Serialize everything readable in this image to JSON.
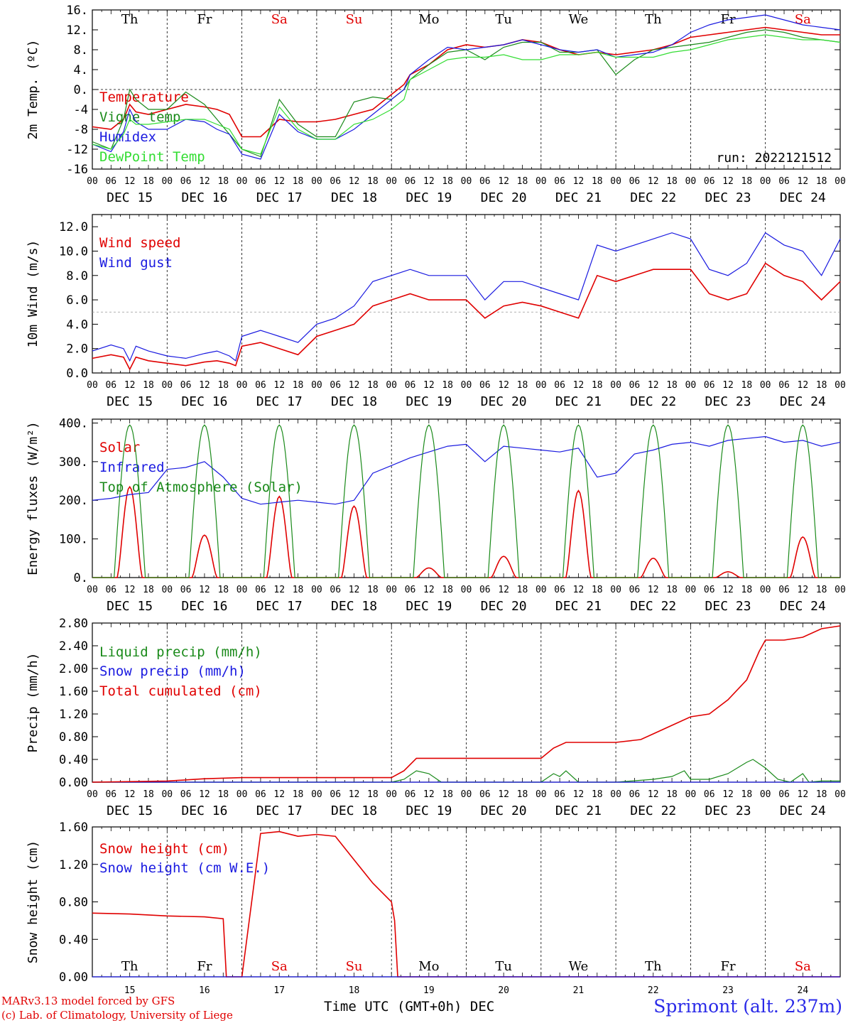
{
  "days": [
    {
      "label": "Th",
      "weekend": false,
      "date": "DEC 15",
      "num": "15"
    },
    {
      "label": "Fr",
      "weekend": false,
      "date": "DEC 16",
      "num": "16"
    },
    {
      "label": "Sa",
      "weekend": true,
      "date": "DEC 17",
      "num": "17"
    },
    {
      "label": "Su",
      "weekend": true,
      "date": "DEC 18",
      "num": "18"
    },
    {
      "label": "Mo",
      "weekend": false,
      "date": "DEC 19",
      "num": "19"
    },
    {
      "label": "Tu",
      "weekend": false,
      "date": "DEC 20",
      "num": "20"
    },
    {
      "label": "We",
      "weekend": false,
      "date": "DEC 21",
      "num": "21"
    },
    {
      "label": "Th",
      "weekend": false,
      "date": "DEC 22",
      "num": "22"
    },
    {
      "label": "Fr",
      "weekend": false,
      "date": "DEC 23",
      "num": "23"
    },
    {
      "label": "Sa",
      "weekend": true,
      "date": "DEC 24",
      "num": "24"
    }
  ],
  "hour_ticks": [
    "00",
    "06",
    "12",
    "18"
  ],
  "colors": {
    "red": "#e00000",
    "green": "#1a8a1a",
    "blue": "#1a1ae0",
    "lightgreen": "#33dd33",
    "weekend": "#e00000"
  },
  "footer": {
    "model": "MARv3.13 model forced by GFS",
    "credit": "(c) Lab. of Climatology, University of Liege",
    "xaxis": "Time UTC (GMT+0h) DEC",
    "location": "Sprimont (alt. 237m)"
  },
  "chart_data": [
    {
      "id": "temperature",
      "type": "line",
      "ylabel": "2m Temp. (ºC)",
      "ylim": [
        -16,
        16
      ],
      "yticks": [
        "16.",
        "12.",
        "8.",
        "4.",
        "0.",
        "-4",
        "-8",
        "-12",
        "-16"
      ],
      "annotation": "run: 2022121512",
      "hline": 0,
      "x_unit": "hours since DEC 15 00 UTC",
      "xlim": [
        0,
        240
      ],
      "series": [
        {
          "name": "Temperature",
          "color": "red",
          "x": [
            0,
            6,
            10,
            12,
            14,
            18,
            24,
            30,
            36,
            40,
            44,
            48,
            54,
            60,
            66,
            72,
            78,
            84,
            90,
            96,
            100,
            102,
            108,
            114,
            120,
            126,
            132,
            138,
            144,
            150,
            156,
            162,
            168,
            174,
            180,
            186,
            192,
            198,
            204,
            210,
            216,
            222,
            228,
            234,
            240
          ],
          "y": [
            -7.5,
            -8,
            -6,
            -3,
            -4.5,
            -5,
            -4,
            -3,
            -3.5,
            -4,
            -5,
            -9.5,
            -9.5,
            -6,
            -6.5,
            -6.5,
            -6,
            -5,
            -4,
            -1,
            1,
            3,
            5,
            8,
            9,
            8.5,
            9,
            10,
            9.5,
            8,
            7,
            7.5,
            7,
            7.5,
            8,
            9,
            10.5,
            11,
            11.5,
            12,
            12.5,
            12,
            11.5,
            11,
            11
          ]
        },
        {
          "name": "Vigne temp",
          "color": "green",
          "x": [
            0,
            6,
            10,
            12,
            14,
            18,
            24,
            30,
            36,
            40,
            44,
            48,
            54,
            60,
            66,
            72,
            78,
            84,
            90,
            96,
            100,
            102,
            108,
            114,
            120,
            126,
            132,
            138,
            144,
            150,
            156,
            162,
            168,
            174,
            180,
            186,
            192,
            198,
            204,
            210,
            216,
            222,
            228,
            234,
            240
          ],
          "y": [
            -10.5,
            -12,
            -6,
            0,
            -2,
            -4,
            -4,
            -0.5,
            -3,
            -6,
            -9,
            -12,
            -13.5,
            -2,
            -7,
            -9.5,
            -9.5,
            -2.5,
            -1.5,
            -2,
            0,
            2,
            5,
            7.5,
            8,
            6,
            8.5,
            9.5,
            9.5,
            7.5,
            7.5,
            8,
            3,
            6,
            8,
            8.5,
            9,
            9.5,
            10.5,
            11.5,
            12,
            11.5,
            10.5,
            10,
            9.5
          ]
        },
        {
          "name": "Humidex",
          "color": "blue",
          "x": [
            0,
            6,
            10,
            12,
            14,
            18,
            24,
            30,
            36,
            40,
            44,
            48,
            54,
            60,
            66,
            72,
            78,
            84,
            90,
            96,
            100,
            102,
            108,
            114,
            120,
            126,
            132,
            138,
            144,
            150,
            156,
            162,
            168,
            174,
            180,
            186,
            192,
            198,
            204,
            210,
            216,
            222,
            228,
            234,
            240
          ],
          "y": [
            -11,
            -12.5,
            -8.5,
            -4,
            -6.5,
            -8,
            -8,
            -6,
            -6.5,
            -8,
            -9,
            -13,
            -14,
            -5,
            -8.5,
            -10,
            -10,
            -8,
            -5,
            -2,
            0,
            3,
            6,
            8.5,
            8,
            8.5,
            9,
            10,
            9,
            8,
            7.5,
            8,
            6.5,
            7,
            7.5,
            9,
            11.5,
            13,
            14,
            14.5,
            15,
            14,
            13,
            12.5,
            12
          ]
        },
        {
          "name": "DewPoint Temp",
          "color": "lightgreen",
          "x": [
            0,
            6,
            10,
            12,
            14,
            18,
            24,
            30,
            36,
            40,
            44,
            48,
            54,
            60,
            66,
            72,
            78,
            84,
            90,
            96,
            100,
            102,
            108,
            114,
            120,
            126,
            132,
            138,
            144,
            150,
            156,
            162,
            168,
            174,
            180,
            186,
            192,
            198,
            204,
            210,
            216,
            222,
            228,
            234,
            240
          ],
          "y": [
            -11,
            -12,
            -9,
            -6,
            -7,
            -7,
            -6.5,
            -6,
            -6,
            -7,
            -8,
            -12,
            -13,
            -3.5,
            -8,
            -10,
            -10,
            -7,
            -6,
            -4,
            -2,
            2,
            4,
            6,
            6.5,
            6.5,
            7,
            6,
            6,
            7,
            7,
            7.5,
            6.5,
            6.5,
            6.5,
            7.5,
            8,
            9,
            10,
            10.5,
            11,
            10.5,
            10,
            10,
            9.5
          ]
        }
      ]
    },
    {
      "id": "wind",
      "type": "line",
      "ylabel": "10m Wind (m/s)",
      "ylim": [
        0,
        13
      ],
      "yticks": [
        "12.0",
        "10.0",
        "8.0",
        "6.0",
        "4.0",
        "2.0",
        "0.0"
      ],
      "hline": 5,
      "x_unit": "hours since DEC 15 00 UTC",
      "xlim": [
        0,
        240
      ],
      "series": [
        {
          "name": "Wind speed",
          "color": "red",
          "x": [
            0,
            6,
            10,
            12,
            14,
            18,
            24,
            30,
            36,
            40,
            44,
            46,
            48,
            54,
            60,
            66,
            72,
            78,
            84,
            90,
            96,
            102,
            108,
            114,
            120,
            126,
            132,
            138,
            144,
            150,
            156,
            162,
            168,
            174,
            180,
            186,
            192,
            198,
            204,
            210,
            216,
            222,
            228,
            234,
            240
          ],
          "y": [
            1.2,
            1.5,
            1.3,
            0.3,
            1.3,
            1.0,
            0.8,
            0.6,
            0.9,
            1.0,
            0.8,
            0.6,
            2.2,
            2.5,
            2.0,
            1.5,
            3.0,
            3.5,
            4.0,
            5.5,
            6.0,
            6.5,
            6.0,
            6.0,
            6.0,
            4.5,
            5.5,
            5.8,
            5.5,
            5.0,
            4.5,
            8.0,
            7.5,
            8.0,
            8.5,
            8.5,
            8.5,
            6.5,
            6.0,
            6.5,
            9.0,
            8.0,
            7.5,
            6.0,
            7.5
          ]
        },
        {
          "name": "Wind gust",
          "color": "blue",
          "x": [
            0,
            6,
            10,
            12,
            14,
            18,
            24,
            30,
            36,
            40,
            44,
            46,
            48,
            54,
            60,
            66,
            72,
            78,
            84,
            90,
            96,
            102,
            108,
            114,
            120,
            126,
            132,
            138,
            144,
            150,
            156,
            162,
            168,
            174,
            180,
            186,
            192,
            198,
            204,
            210,
            216,
            222,
            228,
            234,
            240
          ],
          "y": [
            1.8,
            2.3,
            2.0,
            1.0,
            2.2,
            1.8,
            1.4,
            1.2,
            1.6,
            1.8,
            1.4,
            1.0,
            3.0,
            3.5,
            3.0,
            2.5,
            4.0,
            4.5,
            5.5,
            7.5,
            8.0,
            8.5,
            8.0,
            8.0,
            8.0,
            6.0,
            7.5,
            7.5,
            7.0,
            6.5,
            6.0,
            10.5,
            10.0,
            10.5,
            11.0,
            11.5,
            11.0,
            8.5,
            8.0,
            9.0,
            11.5,
            10.5,
            10.0,
            8.0,
            11.0
          ]
        }
      ]
    },
    {
      "id": "energy",
      "type": "line",
      "ylabel": "Energy fluxes (W/m²)",
      "ylim": [
        0,
        410
      ],
      "yticks": [
        "400.",
        "300.",
        "200.",
        "100.",
        "0."
      ],
      "x_unit": "hours since DEC 15 00 UTC",
      "xlim": [
        0,
        240
      ],
      "series": [
        {
          "name": "Solar",
          "color": "red",
          "daily_peak": [
            235,
            110,
            210,
            185,
            25,
            55,
            225,
            50,
            15,
            105
          ]
        },
        {
          "name": "Infrared",
          "color": "blue",
          "x": [
            0,
            6,
            12,
            18,
            24,
            30,
            36,
            42,
            48,
            54,
            60,
            66,
            72,
            78,
            84,
            90,
            96,
            102,
            108,
            114,
            120,
            126,
            132,
            138,
            144,
            150,
            156,
            162,
            168,
            174,
            180,
            186,
            192,
            198,
            204,
            210,
            216,
            222,
            228,
            234,
            240
          ],
          "y": [
            200,
            205,
            215,
            220,
            280,
            285,
            300,
            260,
            205,
            190,
            195,
            200,
            195,
            190,
            200,
            270,
            290,
            310,
            325,
            340,
            345,
            300,
            340,
            335,
            330,
            325,
            335,
            260,
            270,
            320,
            330,
            345,
            350,
            340,
            355,
            360,
            365,
            350,
            355,
            340,
            350
          ]
        },
        {
          "name": "Top of Atmosphere (Solar)",
          "color": "green",
          "daily_peak": [
            395,
            395,
            395,
            395,
            395,
            395,
            395,
            395,
            395,
            395
          ]
        }
      ]
    },
    {
      "id": "precip",
      "type": "line",
      "ylabel": "Precip (mm/h)",
      "ylim": [
        0,
        2.8
      ],
      "yticks": [
        "2.80",
        "2.40",
        "2.00",
        "1.60",
        "1.20",
        "0.80",
        "0.40",
        "0.00"
      ],
      "x_unit": "hours since DEC 15 00 UTC",
      "xlim": [
        0,
        240
      ],
      "series": [
        {
          "name": "Liquid precip (mm/h)",
          "color": "green",
          "x": [
            0,
            96,
            100,
            104,
            108,
            112,
            144,
            148,
            150,
            152,
            156,
            168,
            180,
            186,
            190,
            192,
            198,
            204,
            210,
            212,
            216,
            220,
            224,
            228,
            230,
            234,
            240
          ],
          "y": [
            0,
            0,
            0.05,
            0.2,
            0.15,
            0,
            0,
            0.15,
            0.1,
            0.2,
            0,
            0,
            0.05,
            0.1,
            0.2,
            0.05,
            0.05,
            0.15,
            0.35,
            0.4,
            0.25,
            0.05,
            0,
            0.15,
            0,
            0.02,
            0.02
          ]
        },
        {
          "name": "Snow precip (mm/h)",
          "color": "blue",
          "x": [
            0,
            240
          ],
          "y": [
            0,
            0
          ]
        },
        {
          "name": "Total cumulated (cm)",
          "color": "red",
          "x": [
            0,
            24,
            36,
            48,
            60,
            72,
            84,
            96,
            100,
            104,
            108,
            120,
            132,
            144,
            148,
            152,
            160,
            168,
            176,
            180,
            186,
            192,
            198,
            204,
            210,
            214,
            216,
            222,
            228,
            234,
            240
          ],
          "y": [
            0,
            0.02,
            0.06,
            0.08,
            0.08,
            0.08,
            0.08,
            0.08,
            0.2,
            0.42,
            0.42,
            0.42,
            0.42,
            0.42,
            0.6,
            0.7,
            0.7,
            0.7,
            0.75,
            0.85,
            1.0,
            1.15,
            1.2,
            1.45,
            1.8,
            2.3,
            2.5,
            2.5,
            2.55,
            2.7,
            2.75
          ]
        }
      ]
    },
    {
      "id": "snow",
      "type": "line",
      "ylabel": "Snow height (cm)",
      "ylim": [
        0,
        1.6
      ],
      "yticks": [
        "1.60",
        "1.20",
        "0.80",
        "0.40",
        "0.00"
      ],
      "x_unit": "hours since DEC 15 00 UTC",
      "xlim": [
        0,
        240
      ],
      "series": [
        {
          "name": "Snow height (cm)",
          "color": "red",
          "x": [
            0,
            12,
            24,
            36,
            42,
            43,
            48,
            54,
            60,
            66,
            72,
            78,
            84,
            90,
            96,
            97,
            98,
            240
          ],
          "y": [
            0.68,
            0.67,
            0.65,
            0.64,
            0.62,
            0,
            0,
            1.53,
            1.55,
            1.5,
            1.52,
            1.5,
            1.25,
            1.0,
            0.8,
            0.6,
            0,
            0
          ]
        },
        {
          "name": "Snow height (cm W.E.)",
          "color": "blue",
          "x": [
            0,
            240
          ],
          "y": [
            0,
            0
          ]
        }
      ]
    }
  ]
}
